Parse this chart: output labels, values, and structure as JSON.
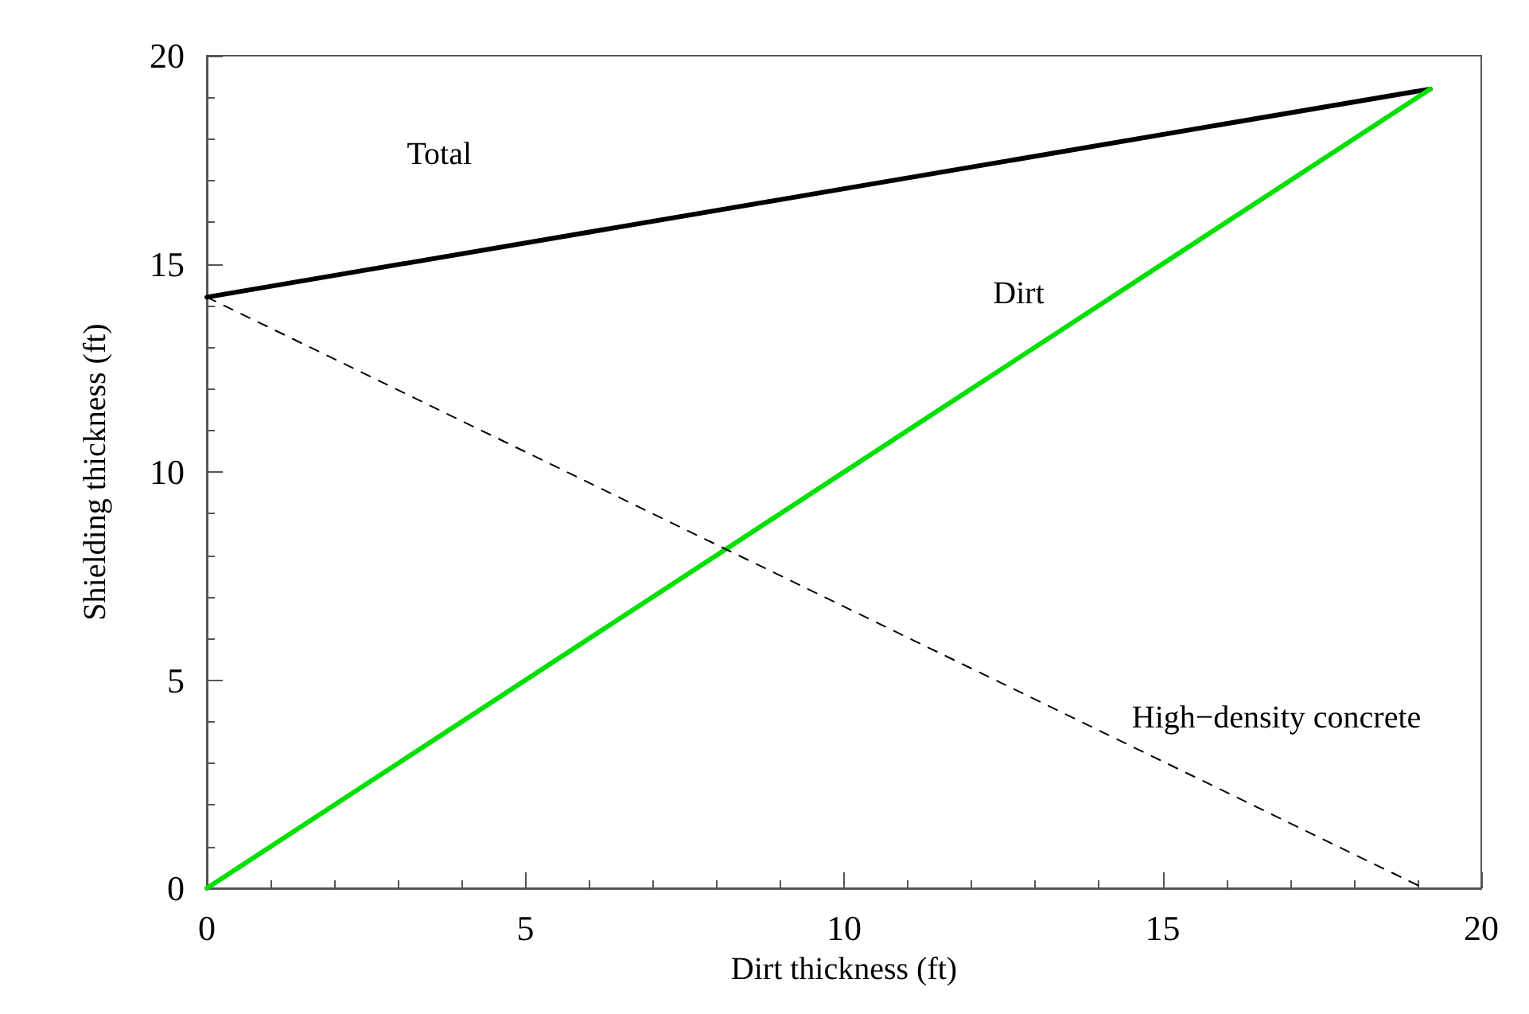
{
  "chart_data": {
    "type": "line",
    "xlabel": "Dirt thickness (ft)",
    "ylabel": "Shielding thickness (ft)",
    "xlim": [
      0,
      20
    ],
    "xticks": [
      0,
      5,
      10,
      15,
      20
    ],
    "ylim": [
      0,
      20
    ],
    "yticks": [
      0,
      5,
      10,
      15,
      20
    ],
    "grid": false,
    "legend": false,
    "marker": "none",
    "series": [
      {
        "name": "Total",
        "color": "#000000",
        "x": [
          0,
          19.2
        ],
        "values": [
          14.2,
          19.2
        ]
      },
      {
        "name": "Dirt",
        "color": "#00e000",
        "x": [
          0,
          19.2
        ],
        "values": [
          0,
          19.2
        ]
      },
      {
        "name": "High−density concrete",
        "color": "#000000",
        "line_style": "dashed",
        "x": [
          0,
          19.1
        ],
        "values": [
          14.2,
          0
        ]
      }
    ]
  }
}
